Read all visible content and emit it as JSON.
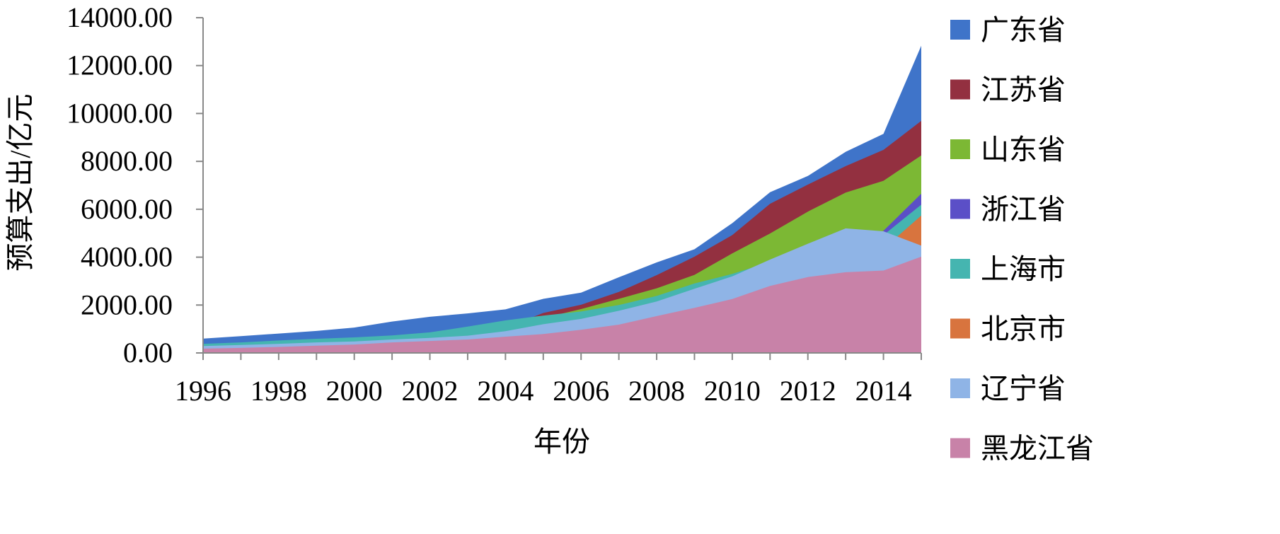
{
  "chart_data": {
    "type": "area",
    "stacked": false,
    "xlabel": "年份",
    "ylabel": "预算支出/亿元",
    "ylim": [
      0,
      14000
    ],
    "yticks": [
      0,
      2000,
      4000,
      6000,
      8000,
      10000,
      12000,
      14000
    ],
    "ytick_labels": [
      "0.00",
      "2000.00",
      "4000.00",
      "6000.00",
      "8000.00",
      "10000.00",
      "12000.00",
      "14000.00"
    ],
    "x": [
      1996,
      1997,
      1998,
      1999,
      2000,
      2001,
      2002,
      2003,
      2004,
      2005,
      2006,
      2007,
      2008,
      2009,
      2010,
      2011,
      2012,
      2013,
      2014,
      2015
    ],
    "xtick_labels": [
      "1996",
      "1998",
      "2000",
      "2002",
      "2004",
      "2006",
      "2008",
      "2010",
      "2012",
      "2014"
    ],
    "legend_position": "right",
    "grid": false,
    "series": [
      {
        "name": "广东省",
        "color": "#3f74c9",
        "values": [
          600,
          700,
          810,
          920,
          1060,
          1310,
          1510,
          1650,
          1820,
          2260,
          2520,
          3160,
          3780,
          4330,
          5420,
          6710,
          7390,
          8400,
          9150,
          12830
        ]
      },
      {
        "name": "江苏省",
        "color": "#933040",
        "values": [
          280,
          330,
          390,
          450,
          510,
          600,
          690,
          800,
          1050,
          1670,
          2010,
          2550,
          3250,
          4020,
          4920,
          6230,
          7030,
          7800,
          8480,
          9690
        ]
      },
      {
        "name": "山东省",
        "color": "#7cb834",
        "values": [
          300,
          350,
          400,
          460,
          520,
          640,
          750,
          870,
          1060,
          1460,
          1830,
          2260,
          2700,
          3260,
          4160,
          4990,
          5900,
          6700,
          7190,
          8250
        ]
      },
      {
        "name": "浙江省",
        "color": "#5b4fc7",
        "values": [
          200,
          240,
          280,
          320,
          360,
          430,
          510,
          600,
          710,
          900,
          1100,
          1350,
          1650,
          1950,
          2400,
          2950,
          3420,
          3950,
          5100,
          6650
        ]
      },
      {
        "name": "上海市",
        "color": "#45b5b0",
        "values": [
          380,
          440,
          520,
          590,
          650,
          730,
          860,
          1100,
          1360,
          1560,
          1730,
          2000,
          2380,
          2900,
          3300,
          3800,
          4200,
          4600,
          4920,
          6190
        ]
      },
      {
        "name": "北京市",
        "color": "#d8743e",
        "values": [
          180,
          210,
          250,
          290,
          340,
          420,
          520,
          600,
          720,
          900,
          1050,
          1300,
          1600,
          1950,
          2300,
          2800,
          3300,
          3800,
          4350,
          5740
        ]
      },
      {
        "name": "辽宁省",
        "color": "#8fb4e6",
        "values": [
          290,
          330,
          380,
          440,
          480,
          560,
          630,
          720,
          910,
          1200,
          1420,
          1760,
          2150,
          2680,
          3200,
          3900,
          4560,
          5200,
          5080,
          4480
        ]
      },
      {
        "name": "黑龙江省",
        "color": "#c882a8",
        "values": [
          180,
          210,
          250,
          300,
          350,
          440,
          500,
          560,
          680,
          790,
          970,
          1180,
          1540,
          1880,
          2250,
          2800,
          3170,
          3370,
          3440,
          4020
        ]
      }
    ]
  }
}
